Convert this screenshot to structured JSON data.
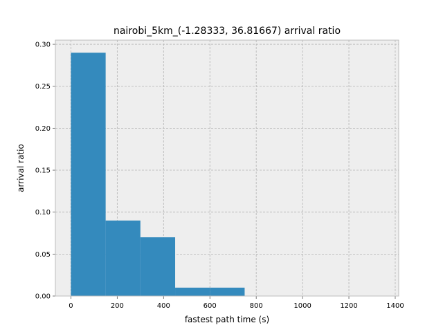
{
  "chart_data": {
    "type": "bar",
    "title": "nairobi_5km_(-1.28333, 36.81667) arrival ratio",
    "xlabel": "fastest path time (s)",
    "ylabel": "arrival ratio",
    "xlim": [
      -67,
      1415
    ],
    "ylim": [
      0,
      0.305
    ],
    "xticks": [
      0,
      200,
      400,
      600,
      800,
      1000,
      1200,
      1400
    ],
    "yticks": [
      0.0,
      0.05,
      0.1,
      0.15,
      0.2,
      0.25,
      0.3
    ],
    "xtick_labels": [
      "0",
      "200",
      "400",
      "600",
      "800",
      "1000",
      "1200",
      "1400"
    ],
    "ytick_labels": [
      "0.00",
      "0.05",
      "0.10",
      "0.15",
      "0.20",
      "0.25",
      "0.30"
    ],
    "grid": true,
    "bar_color": "#348abd",
    "background_color": "#eeeeee",
    "grid_color": "#b2b2b2",
    "bins": [
      {
        "x0": 0,
        "x1": 150,
        "value": 0.29
      },
      {
        "x0": 150,
        "x1": 300,
        "value": 0.09
      },
      {
        "x0": 300,
        "x1": 450,
        "value": 0.07
      },
      {
        "x0": 450,
        "x1": 600,
        "value": 0.01
      },
      {
        "x0": 600,
        "x1": 750,
        "value": 0.01
      },
      {
        "x0": 750,
        "x1": 900,
        "value": 0.0
      },
      {
        "x0": 900,
        "x1": 1050,
        "value": 0.0
      },
      {
        "x0": 1050,
        "x1": 1200,
        "value": 0.0
      },
      {
        "x0": 1200,
        "x1": 1350,
        "value": 0.0
      }
    ]
  }
}
